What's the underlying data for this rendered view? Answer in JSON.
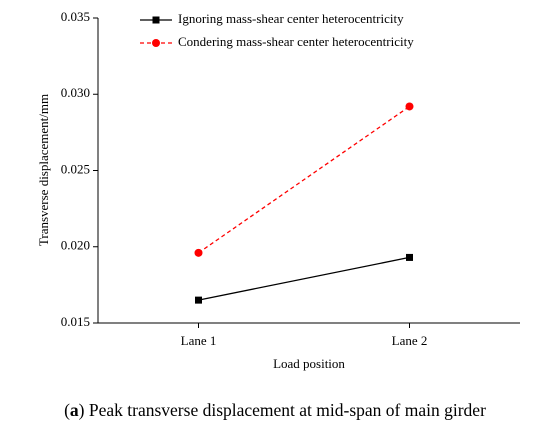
{
  "chart_data": {
    "type": "line",
    "y_axis_label": "Transverse displacement/mm",
    "x_axis_label": "Load position",
    "categories": [
      "Lane 1",
      "Lane 2"
    ],
    "series": [
      {
        "name": "Ignoring mass-shear center heterocentricity",
        "color": "#000000",
        "dash": "solid",
        "marker": "square",
        "values": [
          0.0165,
          0.0193
        ]
      },
      {
        "name": "Condering mass-shear center heterocentricity",
        "color": "#ff0000",
        "dash": "dashed",
        "marker": "circle",
        "values": [
          0.0196,
          0.0292
        ]
      }
    ],
    "ylim": [
      0.015,
      0.035
    ],
    "yticks": [
      0.015,
      {
        "value": 0.02,
        "label": "0.020"
      },
      0.025,
      {
        "value": 0.03,
        "label": "0.030"
      },
      0.035
    ],
    "legend": "top-left",
    "caption": [
      "(",
      "a",
      ") Peak transverse displacement at mid-span of main girder"
    ]
  }
}
